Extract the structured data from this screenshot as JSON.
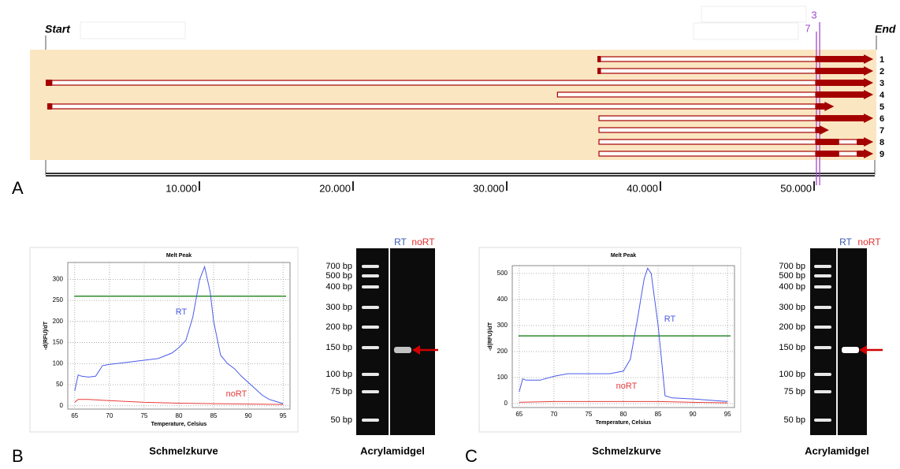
{
  "chart_data": [
    {
      "type": "line",
      "panel": "B",
      "title": "Melt Peak",
      "x_label": "Temperature, Celsius",
      "y_label": "-d(RFU)/dT",
      "caption": "Schmelzkurve",
      "xlim": [
        64,
        96
      ],
      "ylim": [
        -8,
        340
      ],
      "xticks": [
        65,
        70,
        75,
        80,
        85,
        90,
        95
      ],
      "yticks": [
        0,
        50,
        100,
        150,
        200,
        250,
        300
      ],
      "grid": true,
      "threshold": 260,
      "threshold_color": "#2e8b2e",
      "series": [
        {
          "name": "RT",
          "color": "#4a5be8",
          "x": [
            65,
            65.5,
            66,
            67,
            68,
            69,
            70,
            72,
            75,
            77,
            79,
            80,
            81,
            82,
            83,
            83.7,
            84.5,
            85,
            86,
            87,
            88,
            89,
            90,
            91,
            92,
            93,
            94,
            95
          ],
          "values": [
            35,
            73,
            70,
            68,
            70,
            95,
            98,
            102,
            108,
            112,
            125,
            138,
            155,
            210,
            300,
            330,
            270,
            200,
            120,
            100,
            88,
            70,
            55,
            40,
            25,
            15,
            10,
            5
          ]
        },
        {
          "name": "noRT",
          "color": "#e83a3a",
          "x": [
            65,
            65.5,
            67,
            70,
            75,
            80,
            85,
            90,
            95
          ],
          "values": [
            8,
            15,
            15,
            12,
            8,
            6,
            5,
            4,
            3
          ]
        }
      ]
    },
    {
      "type": "line",
      "panel": "C",
      "title": "Melt Peak",
      "x_label": "Temperature, Celsius",
      "y_label": "-d(RFU)/dT",
      "caption": "Schmelzkurve",
      "xlim": [
        64,
        96
      ],
      "ylim": [
        -15,
        530
      ],
      "xticks": [
        65,
        70,
        75,
        80,
        85,
        90,
        95
      ],
      "yticks": [
        0,
        100,
        200,
        300,
        400,
        500
      ],
      "grid": true,
      "threshold": 260,
      "threshold_color": "#2e8b2e",
      "series": [
        {
          "name": "RT",
          "color": "#4a5be8",
          "x": [
            65,
            65.5,
            66,
            68,
            70,
            72,
            75,
            78,
            80,
            81,
            82,
            83,
            83.5,
            84,
            85,
            86,
            87,
            90,
            93,
            95
          ],
          "values": [
            45,
            95,
            90,
            90,
            105,
            115,
            115,
            115,
            125,
            170,
            320,
            480,
            520,
            500,
            300,
            30,
            22,
            18,
            12,
            8
          ]
        },
        {
          "name": "noRT",
          "color": "#e83a3a",
          "x": [
            65,
            70,
            75,
            80,
            85,
            90,
            95
          ],
          "values": [
            5,
            8,
            8,
            8,
            8,
            5,
            3
          ]
        }
      ]
    }
  ],
  "panel_a": {
    "start_label": "Start",
    "end_label": "End",
    "xlim": [
      0,
      54050
    ],
    "xticks": [
      {
        "value": 10000,
        "label": "10.000"
      },
      {
        "value": 20000,
        "label": "20.000"
      },
      {
        "value": 30000,
        "label": "30.000"
      },
      {
        "value": 40000,
        "label": "40.000"
      },
      {
        "value": 50000,
        "label": "50.000"
      }
    ],
    "markers": [
      {
        "label": "3",
        "position": 50360
      },
      {
        "label": "7",
        "position": 50150
      }
    ],
    "transcripts": [
      {
        "label": "1",
        "exons": [
          {
            "start": 35900,
            "end": 36100,
            "kind": "cds"
          },
          {
            "start": 36100,
            "end": 50100,
            "kind": "utr"
          },
          {
            "start": 50100,
            "end": 53850,
            "kind": "cds"
          }
        ]
      },
      {
        "label": "2",
        "exons": [
          {
            "start": 35900,
            "end": 36100,
            "kind": "cds"
          },
          {
            "start": 36100,
            "end": 50100,
            "kind": "utr"
          },
          {
            "start": 50100,
            "end": 53850,
            "kind": "cds"
          }
        ]
      },
      {
        "label": "3",
        "exons": [
          {
            "start": 0,
            "end": 400,
            "kind": "cds"
          },
          {
            "start": 400,
            "end": 50100,
            "kind": "utr"
          },
          {
            "start": 50100,
            "end": 53850,
            "kind": "cds"
          }
        ]
      },
      {
        "label": "4",
        "exons": [
          {
            "start": 33300,
            "end": 50100,
            "kind": "utr"
          },
          {
            "start": 50100,
            "end": 53850,
            "kind": "cds"
          }
        ]
      },
      {
        "label": "5",
        "exons": [
          {
            "start": 100,
            "end": 400,
            "kind": "cds"
          },
          {
            "start": 400,
            "end": 50100,
            "kind": "utr"
          },
          {
            "start": 50100,
            "end": 51300,
            "kind": "cds"
          }
        ]
      },
      {
        "label": "6",
        "exons": [
          {
            "start": 36000,
            "end": 50100,
            "kind": "utr"
          },
          {
            "start": 50100,
            "end": 53850,
            "kind": "cds"
          }
        ]
      },
      {
        "label": "7",
        "exons": [
          {
            "start": 36000,
            "end": 50100,
            "kind": "utr"
          },
          {
            "start": 50100,
            "end": 50970,
            "kind": "cds"
          }
        ]
      },
      {
        "label": "8",
        "exons": [
          {
            "start": 36000,
            "end": 50100,
            "kind": "utr"
          },
          {
            "start": 50100,
            "end": 51600,
            "kind": "cds"
          },
          {
            "start": 51600,
            "end": 52800,
            "kind": "utr"
          },
          {
            "start": 52800,
            "end": 53850,
            "kind": "cds"
          }
        ]
      },
      {
        "label": "9",
        "exons": [
          {
            "start": 36000,
            "end": 50100,
            "kind": "utr"
          },
          {
            "start": 50100,
            "end": 51600,
            "kind": "cds"
          },
          {
            "start": 51600,
            "end": 52800,
            "kind": "utr"
          },
          {
            "start": 52800,
            "end": 53850,
            "kind": "cds"
          }
        ]
      }
    ]
  },
  "gels": [
    {
      "lane_labels": [
        "RT",
        "noRT"
      ],
      "ladder": [
        "700 bp",
        "500 bp",
        "400 bp",
        "300 bp",
        "200 bp",
        "150 bp",
        "100 bp",
        "75 bp",
        "50 bp"
      ],
      "caption": "Acrylamidgel"
    },
    {
      "lane_labels": [
        "RT",
        "noRT"
      ],
      "ladder": [
        "700 bp",
        "500 bp",
        "400 bp",
        "300 bp",
        "200 bp",
        "150 bp",
        "100 bp",
        "75 bp",
        "50 bp"
      ],
      "caption": "Acrylamidgel"
    }
  ],
  "panel_labels": [
    "A",
    "B",
    "C"
  ]
}
